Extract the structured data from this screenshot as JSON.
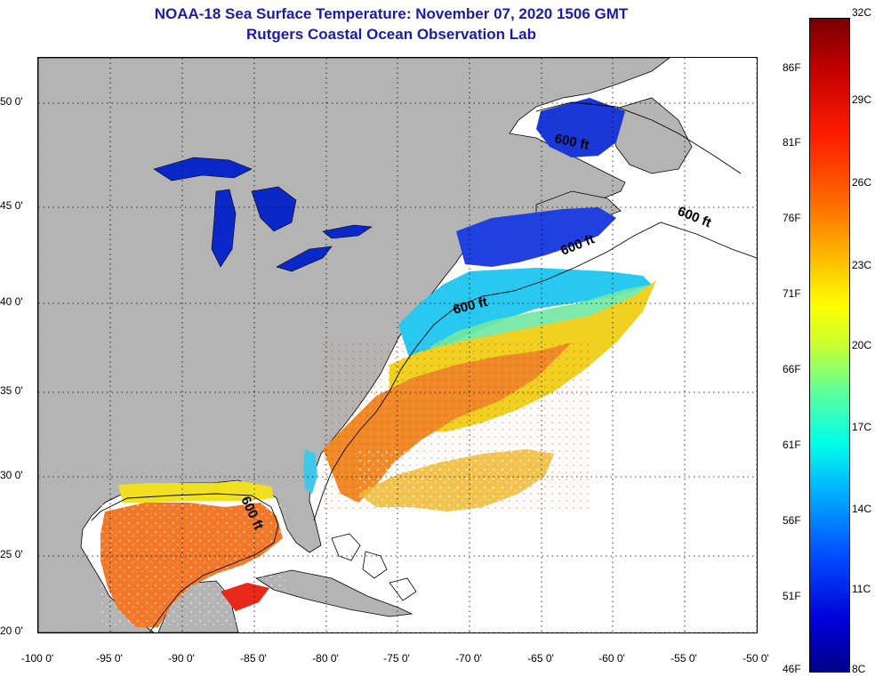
{
  "title_line1": "NOAA-18 Sea Surface Temperature:  November 07, 2020 1506 GMT",
  "title_line2": "Rutgers Coastal Ocean Observation Lab",
  "lat_labels": [
    "50 0'",
    "45 0'",
    "40 0'",
    "35 0'",
    "30 0'",
    "25 0'",
    "20 0'"
  ],
  "lon_labels": [
    "-100 0'",
    "-95 0'",
    "-90 0'",
    "-85 0'",
    "-80 0'",
    "-75 0'",
    "-70 0'",
    "-65 0'",
    "-60 0'",
    "-55 0'",
    "-50 0'"
  ],
  "contour_label": "600 ft",
  "colorbar": {
    "fahrenheit": [
      "86F",
      "81F",
      "76F",
      "71F",
      "66F",
      "61F",
      "56F",
      "51F",
      "46F"
    ],
    "celsius": [
      "32C",
      "29C",
      "26C",
      "23C",
      "20C",
      "17C",
      "14C",
      "11C",
      "8C"
    ]
  },
  "colors": {
    "land": "#b4b4b4",
    "title": "#1b1ba6",
    "lake": "#0a28c8",
    "cold_shelf": "#2040e0",
    "shelf_cyan": "#28c8f0",
    "mid_yellow": "#f0d020",
    "gulf_orange": "#f07828",
    "loop_red": "#e82818"
  }
}
